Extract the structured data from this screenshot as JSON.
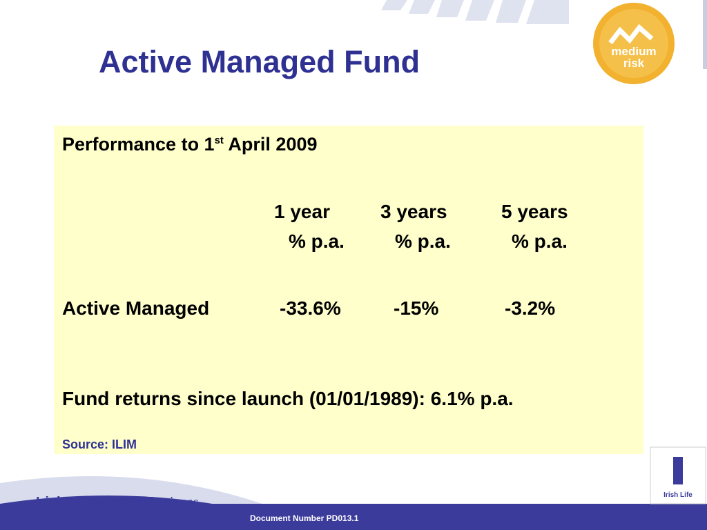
{
  "title": "Active Managed Fund",
  "badge": {
    "line1": "medium",
    "line2": "risk"
  },
  "panel": {
    "heading": {
      "before": "Performance to 1",
      "sup": "st",
      "after": " April 2009"
    },
    "columns": [
      {
        "period": "1 year",
        "unit": "% p.a."
      },
      {
        "period": "3 years",
        "unit": "% p.a."
      },
      {
        "period": "5 years",
        "unit": "% p.a."
      }
    ],
    "row": {
      "label": "Active Managed",
      "values": [
        "-33.6%",
        "-15%",
        "-3.2%"
      ]
    },
    "since_launch": "Fund returns since launch (01/01/1989): 6.1% p.a.",
    "source": "Source: ILIM"
  },
  "footer": {
    "brand": "Irish Life",
    "division": "Corporate Business",
    "document_number": "Document Number PD013.1",
    "logo_text": "Irish Life"
  }
}
